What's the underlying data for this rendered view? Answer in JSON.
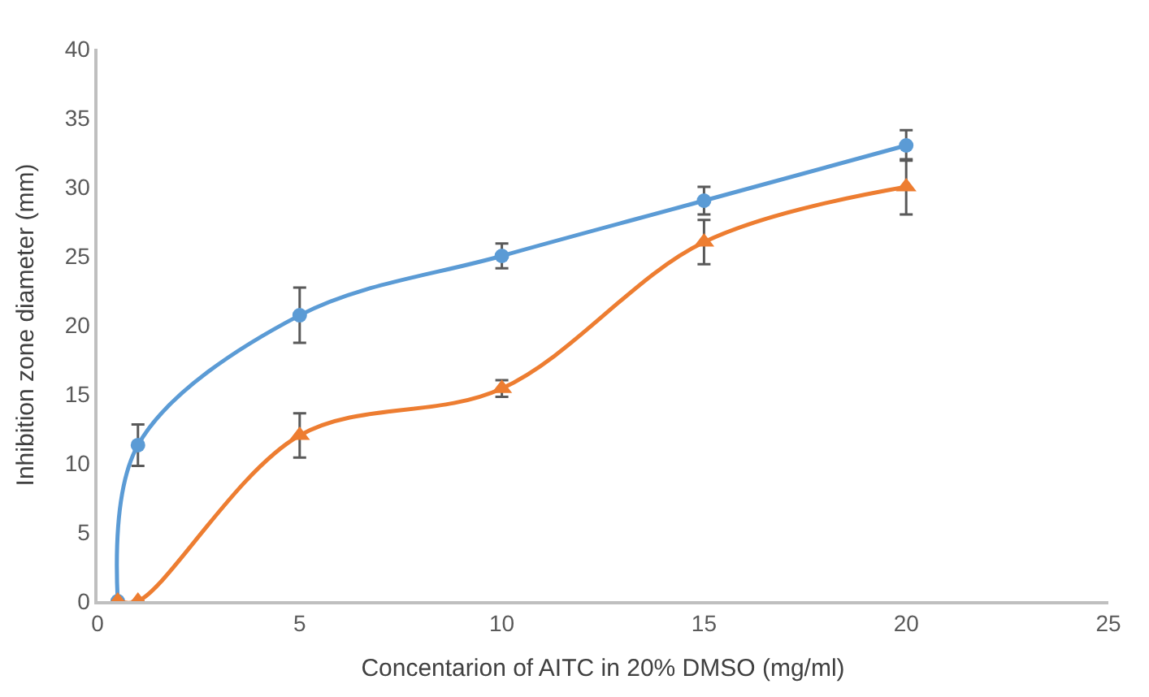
{
  "chart_data": {
    "type": "line",
    "xlabel": "Concentarion of AITC in 20% DMSO (mg/ml)",
    "ylabel": "Inhibition zone diameter (mm)",
    "x": [
      0.5,
      1,
      5,
      10,
      15,
      20
    ],
    "series": [
      {
        "color": "#5b9bd5",
        "marker": "circle",
        "values": [
          0,
          11.3,
          20.7,
          25,
          29,
          33
        ],
        "errors": [
          null,
          1.5,
          2,
          0.9,
          1,
          1.1
        ]
      },
      {
        "color": "#ed7d31",
        "marker": "triangle",
        "values": [
          0,
          0,
          12,
          15.4,
          26,
          30
        ],
        "errors": [
          null,
          null,
          1.6,
          0.6,
          1.6,
          2
        ]
      }
    ],
    "xlim": [
      0,
      25
    ],
    "xticks": [
      0,
      5,
      10,
      15,
      20,
      25
    ],
    "ylim": [
      0,
      40
    ],
    "yticks": [
      0,
      5,
      10,
      15,
      20,
      25,
      30,
      35,
      40
    ],
    "grid": false
  }
}
